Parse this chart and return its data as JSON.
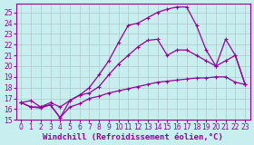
{
  "xlabel": "Windchill (Refroidissement éolien,°C)",
  "bg_color": "#c8eef0",
  "line_color": "#990099",
  "grid_color": "#b0c8c8",
  "xlim": [
    -0.5,
    23.5
  ],
  "ylim": [
    15,
    25.8
  ],
  "yticks": [
    15,
    16,
    17,
    18,
    19,
    20,
    21,
    22,
    23,
    24,
    25
  ],
  "xticks": [
    0,
    1,
    2,
    3,
    4,
    5,
    6,
    7,
    8,
    9,
    10,
    11,
    12,
    13,
    14,
    15,
    16,
    17,
    18,
    19,
    20,
    21,
    22,
    23
  ],
  "line1_x": [
    0,
    1,
    2,
    3,
    4,
    5,
    6,
    7,
    8,
    9,
    10,
    11,
    12,
    13,
    14,
    15,
    16,
    17,
    18,
    19,
    20,
    21,
    22,
    23
  ],
  "line1_y": [
    16.6,
    16.8,
    16.2,
    16.4,
    15.2,
    16.2,
    16.5,
    17.0,
    17.2,
    17.5,
    17.7,
    17.9,
    18.1,
    18.3,
    18.5,
    18.6,
    18.7,
    18.8,
    18.9,
    18.9,
    19.0,
    19.0,
    18.5,
    18.3
  ],
  "line2_x": [
    0,
    1,
    2,
    3,
    4,
    5,
    6,
    7,
    8,
    9,
    10,
    11,
    12,
    13,
    14,
    15,
    16,
    17,
    18,
    19,
    20,
    21,
    22,
    23
  ],
  "line2_y": [
    16.6,
    16.2,
    16.2,
    16.6,
    16.2,
    16.8,
    17.3,
    17.5,
    18.1,
    19.2,
    20.2,
    21.0,
    21.8,
    22.4,
    22.5,
    21.0,
    21.5,
    21.5,
    21.0,
    20.5,
    20.0,
    22.5,
    21.0,
    18.3
  ],
  "line3_x": [
    0,
    1,
    2,
    3,
    4,
    5,
    6,
    7,
    8,
    9,
    10,
    11,
    12,
    13,
    14,
    15,
    16,
    17,
    18,
    19,
    20,
    21,
    22,
    23
  ],
  "line3_y": [
    16.6,
    16.2,
    16.1,
    16.4,
    15.2,
    16.8,
    17.3,
    18.0,
    19.2,
    20.5,
    22.2,
    23.8,
    24.0,
    24.5,
    25.0,
    25.3,
    25.5,
    25.5,
    23.8,
    21.5,
    20.0,
    20.5,
    21.0,
    18.3
  ],
  "marker": "+",
  "markersize": 3,
  "linewidth": 0.9,
  "xlabel_fontsize": 6.5,
  "tick_fontsize": 5.5
}
